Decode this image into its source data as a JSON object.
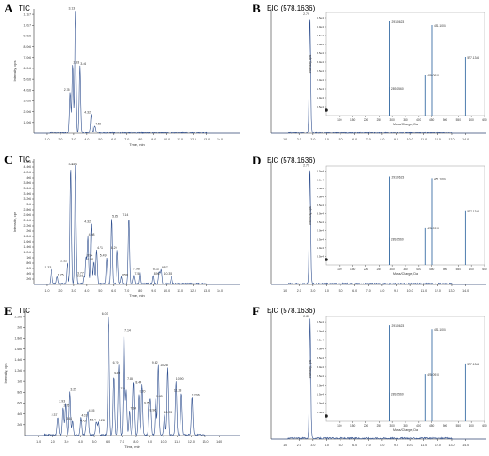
{
  "colors": {
    "trace": "#2f4f8f",
    "axis": "#333333",
    "inset": "#3a6ea5"
  },
  "chart_data": [
    {
      "letter": "A",
      "title": "TIC",
      "type": "line",
      "xlabel": "Time, min",
      "ylabel": "Intensity, cps",
      "xlim": [
        0,
        15.5
      ],
      "xticks": [
        "1.0",
        "2.0",
        "3.0",
        "4.0",
        "5.0",
        "6.0",
        "7.0",
        "8.0",
        "9.0",
        "10.0",
        "11.0",
        "12.0",
        "13.0",
        "14.0"
      ],
      "ylim": [
        0,
        11000000
      ],
      "yticks": [
        "1.0e6",
        "2.0e6",
        "3.0e6",
        "4.0e6",
        "5.0e6",
        "6.0e6",
        "7.0e6",
        "8.0e6",
        "9.0e6",
        "1.0e7",
        "1.1e7"
      ],
      "peaks": [
        [
          2.75,
          3600000
        ],
        [
          2.93,
          6000000
        ],
        [
          3.13,
          10800000
        ],
        [
          3.46,
          5900000
        ],
        [
          4.32,
          1600000
        ],
        [
          4.58,
          600000
        ]
      ],
      "peak_labels": [
        "2.75",
        "2.93",
        "3.13",
        "3.46",
        "4.32",
        "4.58"
      ]
    },
    {
      "letter": "B",
      "title": "EIC (578.1636)",
      "type": "line",
      "xlabel": "",
      "ylabel": "",
      "xlim": [
        0,
        15.5
      ],
      "xticks": [
        "1.0",
        "2.0",
        "3.0",
        "4.0",
        "5.0",
        "6.0",
        "7.0",
        "8.0",
        "9.0",
        "10.0",
        "11.0",
        "12.0",
        "13.0",
        "14.0"
      ],
      "ylim": [
        0,
        1.6
      ],
      "yticks": [],
      "peaks": [
        [
          2.79,
          1.5
        ]
      ],
      "peak_labels": [
        "2.79"
      ],
      "inset": {
        "type": "bar",
        "xlabel": "Mass/Charge, Da",
        "ylabel": "Intensity, cps",
        "xlim": [
          50,
          650
        ],
        "xticks": [
          "100",
          "150",
          "200",
          "250",
          "300",
          "350",
          "400",
          "450",
          "500",
          "550",
          "600",
          "650"
        ],
        "ylim": [
          0,
          5.8
        ],
        "yticks": [
          "0.5e4",
          "1.0e4",
          "1.5e4",
          "2.0e4",
          "2.5e4",
          "3.0e4",
          "3.5e4",
          "4.0e4",
          "4.5e4",
          "5.0e4",
          "5.5e4"
        ],
        "peaks": [
          [
            289.056,
            1.6
          ],
          [
            291.0623,
            5.3
          ],
          [
            425.091,
            2.3
          ],
          [
            451.1006,
            5.1
          ],
          [
            577.1346,
            3.3
          ]
        ],
        "peak_labels": [
          "289.0560",
          "291.0623",
          "425.0910",
          "451.1006",
          "577.1346"
        ]
      }
    },
    {
      "letter": "C",
      "title": "TIC",
      "type": "line",
      "xlabel": "Time, min",
      "ylabel": "Intensity, cps",
      "xlim": [
        0,
        15.5
      ],
      "xticks": [
        "1.0",
        "2.0",
        "3.0",
        "4.0",
        "5.0",
        "6.0",
        "7.0",
        "8.0",
        "9.0",
        "10.0",
        "11.0",
        "12.0",
        "13.0",
        "14.0"
      ],
      "ylim": [
        0,
        4800000
      ],
      "yticks": [
        "2e5",
        "4e5",
        "6e5",
        "8e5",
        "1e6",
        "1.2e6",
        "1.4e6",
        "1.6e6",
        "1.8e6",
        "2e6",
        "2.2e6",
        "2.4e6",
        "2.6e6",
        "2.8e6",
        "3e6",
        "3.2e6",
        "3.4e6",
        "3.6e6",
        "3.8e6",
        "4e6",
        "4.2e6",
        "4.4e6",
        "4.6e6"
      ],
      "peaks": [
        [
          1.33,
          550000
        ],
        [
          1.75,
          250000
        ],
        [
          2.52,
          800000
        ],
        [
          2.79,
          4500000
        ],
        [
          3.13,
          4500000
        ],
        [
          3.21,
          220000
        ],
        [
          3.77,
          330000
        ],
        [
          3.94,
          1000000
        ],
        [
          4.32,
          2300000
        ],
        [
          4.08,
          1800000
        ],
        [
          4.52,
          850000
        ],
        [
          4.71,
          1300000
        ],
        [
          5.49,
          1000000
        ],
        [
          5.85,
          2500000
        ],
        [
          6.29,
          1300000
        ],
        [
          6.58,
          250000
        ],
        [
          7.14,
          2550000
        ],
        [
          7.54,
          300000
        ],
        [
          7.98,
          500000
        ],
        [
          8.96,
          300000
        ],
        [
          9.43,
          480000
        ],
        [
          9.57,
          550000
        ],
        [
          10.35,
          300000
        ]
      ],
      "peak_labels": [
        "1.33",
        "1.75",
        "2.52",
        "2.79",
        "3.13",
        "3.21",
        "3.77",
        "3.94",
        "4.32",
        "4.08",
        "4.52",
        "4.71",
        "5.49",
        "5.85",
        "6.29",
        "6.58",
        "7.14",
        "7.54",
        "7.98",
        "8.96",
        "9.43",
        "9.57",
        "10.35"
      ]
    },
    {
      "letter": "D",
      "title": "EIC (578.1636)",
      "type": "line",
      "xlabel": "",
      "ylabel": "",
      "xlim": [
        0,
        15.5
      ],
      "xticks": [
        "1.0",
        "2.0",
        "3.0",
        "4.0",
        "5.0",
        "6.0",
        "7.0",
        "8.0",
        "9.0",
        "10.0",
        "11.0",
        "12.0",
        "13.0",
        "14.0"
      ],
      "ylim": [
        0,
        1.6
      ],
      "yticks": [],
      "peaks": [
        [
          2.79,
          1.5
        ]
      ],
      "peak_labels": [
        "2.79"
      ],
      "inset": {
        "type": "bar",
        "xlabel": "Mass/Charge, Da",
        "ylabel": "Intensity, cps",
        "xlim": [
          50,
          650
        ],
        "xticks": [
          "100",
          "150",
          "200",
          "250",
          "300",
          "350",
          "400",
          "450",
          "500",
          "550",
          "600",
          "650"
        ],
        "ylim": [
          0,
          5.8
        ],
        "yticks": [
          "0.5e4",
          "1.0e4",
          "1.5e4",
          "2.0e4",
          "2.5e4",
          "3.0e4",
          "3.5e4",
          "4.0e4",
          "4.5e4",
          "5.0e4",
          "5.5e4"
        ],
        "peaks": [
          [
            289.056,
            1.6
          ],
          [
            291.0623,
            5.2
          ],
          [
            425.091,
            2.2
          ],
          [
            451.1006,
            5.1
          ],
          [
            577.1346,
            3.2
          ]
        ],
        "peak_labels": [
          "289.0560",
          "291.0623",
          "425.0910",
          "451.1006",
          "577.1346"
        ]
      }
    },
    {
      "letter": "E",
      "title": "TIC",
      "type": "line",
      "xlabel": "Time, min",
      "ylabel": "Intensity, cps",
      "xlim": [
        0,
        15.5
      ],
      "xticks": [
        "1.0",
        "2.0",
        "3.0",
        "4.0",
        "5.0",
        "6.0",
        "7.0",
        "8.0",
        "9.0",
        "10.0",
        "11.0",
        "12.0",
        "13.0",
        "14.0"
      ],
      "ylim": [
        0,
        2300000
      ],
      "yticks": [
        "2e5",
        "4e5",
        "6e5",
        "8e5",
        "1e6",
        "1.2e6",
        "1.4e6",
        "1.6e6",
        "1.8e6",
        "2e6",
        "2.2e6"
      ],
      "peaks": [
        [
          2.37,
          330000
        ],
        [
          2.75,
          500000
        ],
        [
          2.93,
          580000
        ],
        [
          3.25,
          800000
        ],
        [
          3.44,
          260000
        ],
        [
          4.03,
          320000
        ],
        [
          4.45,
          220000
        ],
        [
          4.55,
          410000
        ],
        [
          5.14,
          240000
        ],
        [
          5.28,
          230000
        ],
        [
          6.03,
          2200000
        ],
        [
          6.39,
          1100000
        ],
        [
          6.79,
          1300000
        ],
        [
          7.14,
          1900000
        ],
        [
          7.3,
          820000
        ],
        [
          7.54,
          450000
        ],
        [
          7.85,
          1000000
        ],
        [
          8.2,
          760000
        ],
        [
          8.44,
          930000
        ],
        [
          8.96,
          420000
        ],
        [
          9.05,
          550000
        ],
        [
          9.43,
          670000
        ],
        [
          9.62,
          1300000
        ],
        [
          10.05,
          380000
        ],
        [
          10.28,
          1250000
        ],
        [
          10.9,
          1000000
        ],
        [
          11.28,
          780000
        ],
        [
          12.06,
          700000
        ]
      ],
      "peak_labels": [
        "2.37",
        "2.75",
        "2.93",
        "3.25",
        "3.44",
        "4.03",
        "4.45",
        "4.55",
        "5.14",
        "5.28",
        "6.03",
        "6.39",
        "6.79",
        "7.14",
        "7.3",
        "7.54",
        "7.85",
        "8.20",
        "8.44",
        "8.96",
        "9.05",
        "9.43",
        "9.62",
        "10.05",
        "10.28",
        "10.90",
        "11.28",
        "12.06"
      ]
    },
    {
      "letter": "F",
      "title": "EIC (578.1636)",
      "type": "line",
      "xlabel": "",
      "ylabel": "",
      "xlim": [
        0,
        15.5
      ],
      "xticks": [
        "1.0",
        "2.0",
        "3.0",
        "4.0",
        "5.0",
        "6.0",
        "7.0",
        "8.0",
        "9.0",
        "10.0",
        "11.0",
        "12.0",
        "13.0",
        "14.0"
      ],
      "ylim": [
        0,
        1.6
      ],
      "yticks": [],
      "peaks": [
        [
          2.8,
          1.5
        ]
      ],
      "peak_labels": [
        "2.80"
      ],
      "inset": {
        "type": "bar",
        "xlabel": "Mass/Charge, Da",
        "ylabel": "Intensity, cps",
        "xlim": [
          50,
          650
        ],
        "xticks": [
          "100",
          "150",
          "200",
          "250",
          "300",
          "350",
          "400",
          "450",
          "500",
          "550",
          "600",
          "650"
        ],
        "ylim": [
          0,
          5.8
        ],
        "yticks": [
          "0.5e4",
          "1.0e4",
          "1.5e4",
          "2.0e4",
          "2.5e4",
          "3.0e4",
          "3.5e4",
          "4.0e4",
          "4.5e4",
          "5.0e4",
          "5.5e4"
        ],
        "peaks": [
          [
            289.056,
            1.6
          ],
          [
            291.0623,
            5.3
          ],
          [
            425.091,
            2.6
          ],
          [
            451.1006,
            5.1
          ],
          [
            577.1346,
            3.2
          ]
        ],
        "peak_labels": [
          "289.0560",
          "291.0623",
          "425.0910",
          "451.1006",
          "577.1346"
        ]
      }
    }
  ]
}
